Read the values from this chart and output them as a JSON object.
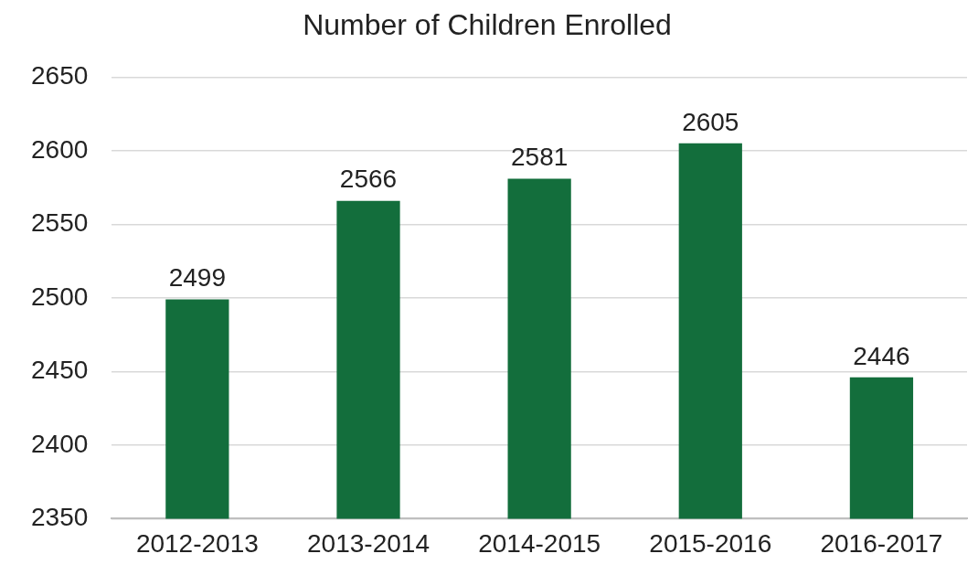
{
  "chart_data": {
    "type": "bar",
    "title": "Number of Children Enrolled",
    "categories": [
      "2012-2013",
      "2013-2014",
      "2014-2015",
      "2015-2016",
      "2016-2017"
    ],
    "values": [
      2499,
      2566,
      2581,
      2605,
      2446
    ],
    "color": "#136e3c",
    "ylim": [
      2350,
      2650
    ],
    "yticks": [
      2350,
      2400,
      2450,
      2500,
      2550,
      2600,
      2650
    ],
    "grid": "y",
    "data_labels": true
  }
}
